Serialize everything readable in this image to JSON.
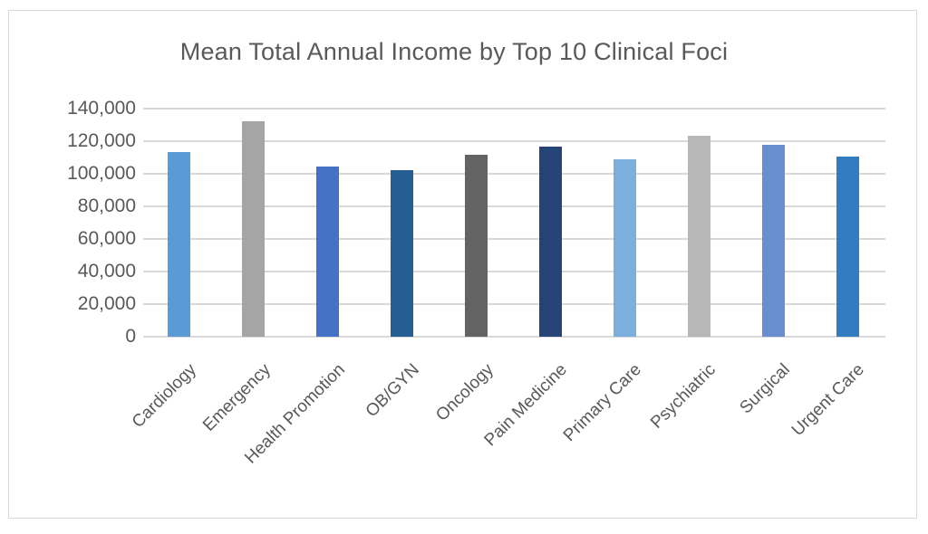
{
  "chart": {
    "title": "Mean Total Annual Income by Top 10 Clinical Foci",
    "y_ticks": [
      "0",
      "20,000",
      "40,000",
      "60,000",
      "80,000",
      "100,000",
      "120,000",
      "140,000"
    ]
  },
  "chart_data": {
    "type": "bar",
    "title": "Mean Total Annual Income by Top 10 Clinical Foci",
    "xlabel": "",
    "ylabel": "",
    "ylim": [
      0,
      140000
    ],
    "y_ticks": [
      0,
      20000,
      40000,
      60000,
      80000,
      100000,
      120000,
      140000
    ],
    "grid": true,
    "legend": "none",
    "categories": [
      "Cardiology",
      "Emergency",
      "Health Promotion",
      "OB/GYN",
      "Oncology",
      "Pain Medicine",
      "Primary Care",
      "Psychiatric",
      "Surgical",
      "Urgent Care"
    ],
    "values": [
      113400,
      132000,
      104700,
      102000,
      111900,
      116400,
      109100,
      123300,
      117700,
      110600
    ],
    "colors": [
      "#5b9bd5",
      "#a5a5a5",
      "#4472c4",
      "#255e91",
      "#636363",
      "#264478",
      "#7cafdd",
      "#b7b7b7",
      "#698ed0",
      "#327dc2"
    ]
  }
}
